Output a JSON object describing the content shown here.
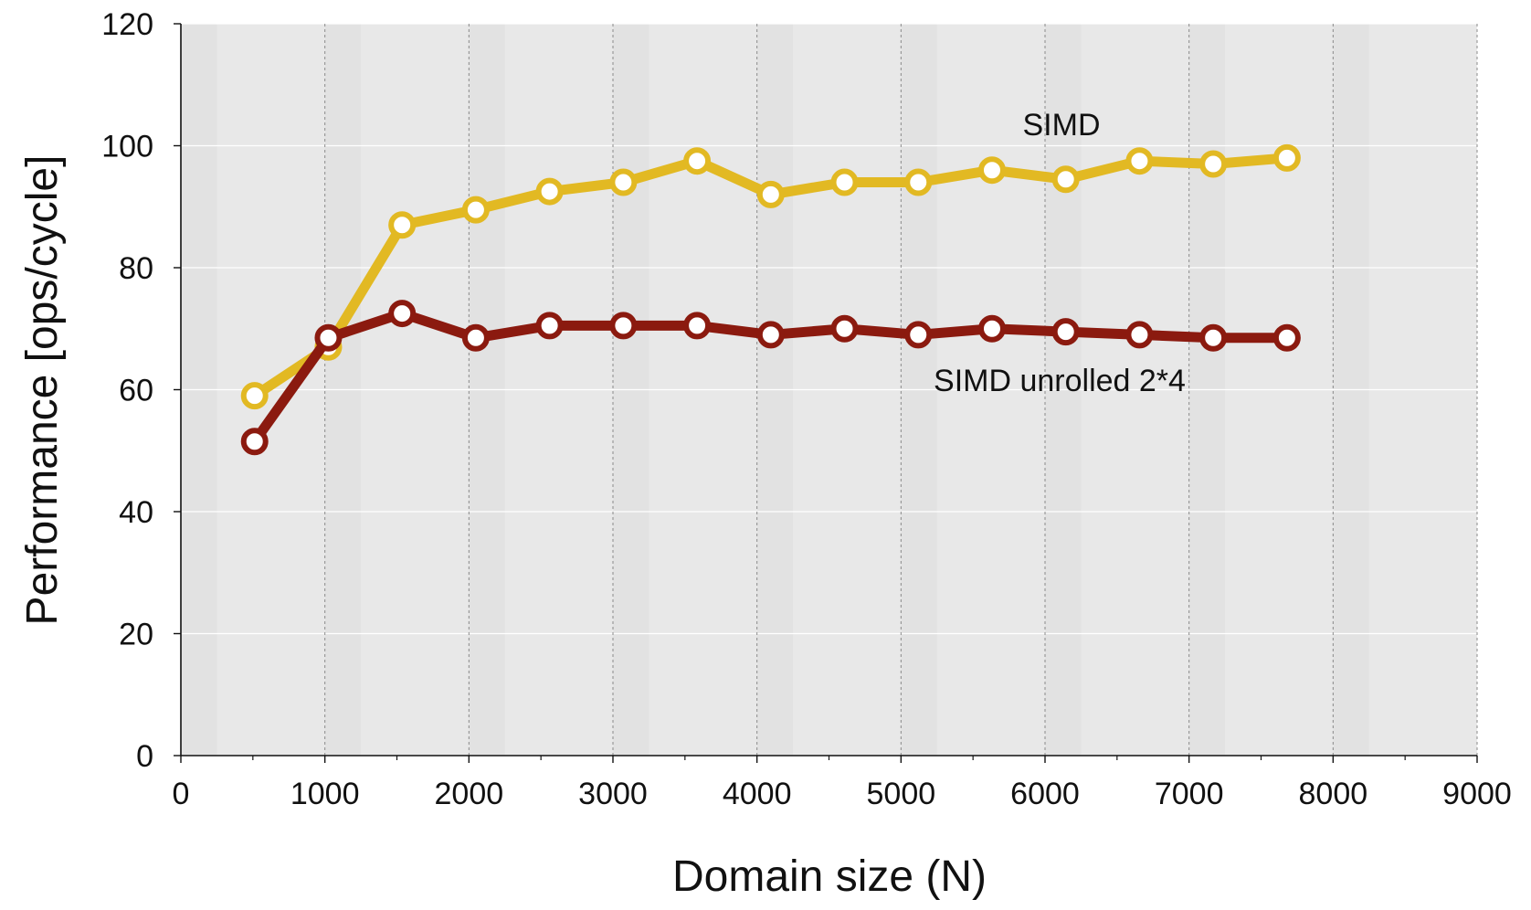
{
  "chart_data": {
    "type": "line",
    "title": "",
    "xlabel": "Domain size (N)",
    "ylabel": "Performance [ops/cycle]",
    "xlim": [
      0,
      9000
    ],
    "ylim": [
      0,
      120
    ],
    "xticks": [
      0,
      1000,
      2000,
      3000,
      4000,
      5000,
      6000,
      7000,
      8000,
      9000
    ],
    "yticks": [
      0,
      20,
      40,
      60,
      80,
      100,
      120
    ],
    "grid": true,
    "legend": "none (inline series labels)",
    "x": [
      512,
      1024,
      1536,
      2048,
      2560,
      3072,
      3584,
      4096,
      4608,
      5120,
      5632,
      6144,
      6656,
      7168,
      7680
    ],
    "series": [
      {
        "name": "SIMD",
        "color": "#E2B923",
        "values": [
          59,
          67,
          87,
          89.5,
          92.5,
          94,
          97.5,
          92,
          94,
          94,
          96,
          94.5,
          97.5,
          97,
          98
        ]
      },
      {
        "name": "SIMD unrolled 2*4",
        "color": "#8B1A0F",
        "values": [
          51.5,
          68.5,
          72.5,
          68.5,
          70.5,
          70.5,
          70.5,
          69,
          70,
          69,
          70,
          69.5,
          69,
          68.5,
          68.5
        ]
      }
    ]
  }
}
